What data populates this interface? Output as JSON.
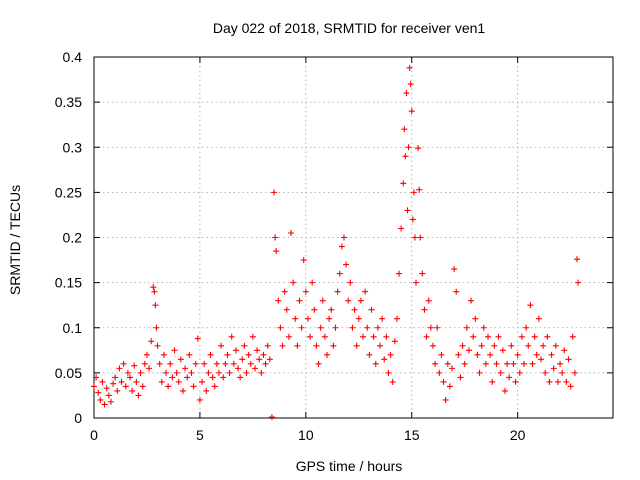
{
  "chart_data": {
    "type": "scatter",
    "title": "Day 022 of 2018, SRMTID for receiver ven1",
    "xlabel": "GPS time / hours",
    "ylabel": "SRMTID / TECUs",
    "xlim": [
      0,
      24.5
    ],
    "ylim": [
      0,
      0.4
    ],
    "xticks": [
      0,
      5,
      10,
      15,
      20
    ],
    "xtick_labels": [
      "0",
      "5",
      "10",
      "15",
      "20"
    ],
    "yticks": [
      0,
      0.05,
      0.1,
      0.15,
      0.2,
      0.25,
      0.3,
      0.35,
      0.4
    ],
    "ytick_labels": [
      "0",
      "0.05",
      "0.1",
      "0.15",
      "0.2",
      "0.25",
      "0.3",
      "0.35",
      "0.4"
    ],
    "grid": true,
    "marker": "plus",
    "color": "#ff0000",
    "series": [
      {
        "name": "SRMTID",
        "points": [
          [
            0.0,
            0.035
          ],
          [
            0.1,
            0.045
          ],
          [
            0.2,
            0.028
          ],
          [
            0.3,
            0.02
          ],
          [
            0.4,
            0.04
          ],
          [
            0.5,
            0.015
          ],
          [
            0.6,
            0.033
          ],
          [
            0.7,
            0.025
          ],
          [
            0.8,
            0.018
          ],
          [
            0.9,
            0.038
          ],
          [
            1.0,
            0.045
          ],
          [
            1.1,
            0.03
          ],
          [
            1.2,
            0.055
          ],
          [
            1.3,
            0.04
          ],
          [
            1.4,
            0.06
          ],
          [
            1.5,
            0.035
          ],
          [
            1.6,
            0.05
          ],
          [
            1.7,
            0.045
          ],
          [
            1.8,
            0.03
          ],
          [
            1.9,
            0.058
          ],
          [
            2.0,
            0.04
          ],
          [
            2.1,
            0.025
          ],
          [
            2.2,
            0.05
          ],
          [
            2.3,
            0.035
          ],
          [
            2.4,
            0.06
          ],
          [
            2.5,
            0.07
          ],
          [
            2.6,
            0.055
          ],
          [
            2.7,
            0.085
          ],
          [
            2.8,
            0.145
          ],
          [
            2.85,
            0.14
          ],
          [
            2.9,
            0.125
          ],
          [
            2.95,
            0.1
          ],
          [
            3.0,
            0.08
          ],
          [
            3.1,
            0.06
          ],
          [
            3.2,
            0.04
          ],
          [
            3.3,
            0.07
          ],
          [
            3.4,
            0.05
          ],
          [
            3.5,
            0.035
          ],
          [
            3.6,
            0.06
          ],
          [
            3.7,
            0.045
          ],
          [
            3.8,
            0.075
          ],
          [
            3.9,
            0.05
          ],
          [
            4.0,
            0.04
          ],
          [
            4.1,
            0.065
          ],
          [
            4.2,
            0.03
          ],
          [
            4.3,
            0.055
          ],
          [
            4.4,
            0.045
          ],
          [
            4.5,
            0.07
          ],
          [
            4.6,
            0.05
          ],
          [
            4.7,
            0.035
          ],
          [
            4.8,
            0.06
          ],
          [
            4.9,
            0.088
          ],
          [
            5.0,
            0.02
          ],
          [
            5.1,
            0.04
          ],
          [
            5.2,
            0.06
          ],
          [
            5.3,
            0.03
          ],
          [
            5.4,
            0.05
          ],
          [
            5.5,
            0.07
          ],
          [
            5.6,
            0.045
          ],
          [
            5.7,
            0.035
          ],
          [
            5.8,
            0.06
          ],
          [
            5.9,
            0.05
          ],
          [
            6.0,
            0.08
          ],
          [
            6.1,
            0.045
          ],
          [
            6.2,
            0.06
          ],
          [
            6.3,
            0.07
          ],
          [
            6.4,
            0.05
          ],
          [
            6.5,
            0.09
          ],
          [
            6.6,
            0.06
          ],
          [
            6.7,
            0.075
          ],
          [
            6.8,
            0.055
          ],
          [
            6.9,
            0.045
          ],
          [
            7.0,
            0.065
          ],
          [
            7.1,
            0.08
          ],
          [
            7.2,
            0.05
          ],
          [
            7.3,
            0.07
          ],
          [
            7.4,
            0.06
          ],
          [
            7.5,
            0.09
          ],
          [
            7.6,
            0.055
          ],
          [
            7.7,
            0.075
          ],
          [
            7.8,
            0.065
          ],
          [
            7.9,
            0.05
          ],
          [
            8.0,
            0.07
          ],
          [
            8.1,
            0.06
          ],
          [
            8.2,
            0.08
          ],
          [
            8.3,
            0.065
          ],
          [
            8.4,
            0.001
          ],
          [
            8.5,
            0.25
          ],
          [
            8.55,
            0.2
          ],
          [
            8.6,
            0.185
          ],
          [
            8.7,
            0.13
          ],
          [
            8.8,
            0.1
          ],
          [
            8.9,
            0.08
          ],
          [
            9.0,
            0.14
          ],
          [
            9.1,
            0.12
          ],
          [
            9.2,
            0.09
          ],
          [
            9.3,
            0.205
          ],
          [
            9.4,
            0.15
          ],
          [
            9.5,
            0.11
          ],
          [
            9.6,
            0.08
          ],
          [
            9.7,
            0.13
          ],
          [
            9.8,
            0.1
          ],
          [
            9.9,
            0.175
          ],
          [
            10.0,
            0.14
          ],
          [
            10.1,
            0.11
          ],
          [
            10.2,
            0.09
          ],
          [
            10.3,
            0.15
          ],
          [
            10.4,
            0.12
          ],
          [
            10.5,
            0.08
          ],
          [
            10.6,
            0.06
          ],
          [
            10.7,
            0.1
          ],
          [
            10.8,
            0.13
          ],
          [
            10.9,
            0.09
          ],
          [
            11.0,
            0.07
          ],
          [
            11.1,
            0.11
          ],
          [
            11.2,
            0.12
          ],
          [
            11.3,
            0.08
          ],
          [
            11.4,
            0.1
          ],
          [
            11.5,
            0.14
          ],
          [
            11.6,
            0.16
          ],
          [
            11.7,
            0.19
          ],
          [
            11.8,
            0.2
          ],
          [
            11.9,
            0.17
          ],
          [
            12.0,
            0.13
          ],
          [
            12.1,
            0.15
          ],
          [
            12.2,
            0.1
          ],
          [
            12.3,
            0.12
          ],
          [
            12.4,
            0.08
          ],
          [
            12.5,
            0.11
          ],
          [
            12.6,
            0.13
          ],
          [
            12.7,
            0.09
          ],
          [
            12.8,
            0.14
          ],
          [
            12.9,
            0.1
          ],
          [
            13.0,
            0.07
          ],
          [
            13.1,
            0.12
          ],
          [
            13.2,
            0.09
          ],
          [
            13.3,
            0.06
          ],
          [
            13.4,
            0.1
          ],
          [
            13.5,
            0.08
          ],
          [
            13.6,
            0.11
          ],
          [
            13.7,
            0.065
          ],
          [
            13.8,
            0.09
          ],
          [
            13.9,
            0.05
          ],
          [
            14.0,
            0.07
          ],
          [
            14.1,
            0.04
          ],
          [
            14.2,
            0.085
          ],
          [
            14.3,
            0.11
          ],
          [
            14.4,
            0.16
          ],
          [
            14.5,
            0.21
          ],
          [
            14.6,
            0.26
          ],
          [
            14.65,
            0.32
          ],
          [
            14.7,
            0.29
          ],
          [
            14.75,
            0.36
          ],
          [
            14.8,
            0.23
          ],
          [
            14.85,
            0.3
          ],
          [
            14.9,
            0.388
          ],
          [
            14.95,
            0.37
          ],
          [
            15.0,
            0.34
          ],
          [
            15.05,
            0.22
          ],
          [
            15.1,
            0.25
          ],
          [
            15.15,
            0.2
          ],
          [
            15.2,
            0.15
          ],
          [
            15.3,
            0.299
          ],
          [
            15.35,
            0.253
          ],
          [
            15.4,
            0.2
          ],
          [
            15.5,
            0.16
          ],
          [
            15.6,
            0.12
          ],
          [
            15.7,
            0.09
          ],
          [
            15.8,
            0.13
          ],
          [
            15.9,
            0.1
          ],
          [
            16.0,
            0.08
          ],
          [
            16.1,
            0.06
          ],
          [
            16.2,
            0.1
          ],
          [
            16.3,
            0.05
          ],
          [
            16.4,
            0.07
          ],
          [
            16.5,
            0.04
          ],
          [
            16.6,
            0.02
          ],
          [
            16.7,
            0.06
          ],
          [
            16.8,
            0.035
          ],
          [
            16.9,
            0.055
          ],
          [
            17.0,
            0.165
          ],
          [
            17.1,
            0.14
          ],
          [
            17.2,
            0.07
          ],
          [
            17.3,
            0.045
          ],
          [
            17.4,
            0.08
          ],
          [
            17.5,
            0.06
          ],
          [
            17.6,
            0.1
          ],
          [
            17.7,
            0.075
          ],
          [
            17.8,
            0.13
          ],
          [
            17.9,
            0.09
          ],
          [
            18.0,
            0.11
          ],
          [
            18.1,
            0.07
          ],
          [
            18.2,
            0.05
          ],
          [
            18.3,
            0.08
          ],
          [
            18.4,
            0.1
          ],
          [
            18.5,
            0.06
          ],
          [
            18.6,
            0.09
          ],
          [
            18.7,
            0.07
          ],
          [
            18.8,
            0.04
          ],
          [
            18.9,
            0.08
          ],
          [
            19.0,
            0.06
          ],
          [
            19.1,
            0.09
          ],
          [
            19.2,
            0.05
          ],
          [
            19.3,
            0.075
          ],
          [
            19.4,
            0.03
          ],
          [
            19.5,
            0.06
          ],
          [
            19.6,
            0.045
          ],
          [
            19.7,
            0.08
          ],
          [
            19.8,
            0.06
          ],
          [
            19.9,
            0.04
          ],
          [
            20.0,
            0.07
          ],
          [
            20.1,
            0.05
          ],
          [
            20.2,
            0.09
          ],
          [
            20.3,
            0.06
          ],
          [
            20.4,
            0.1
          ],
          [
            20.5,
            0.08
          ],
          [
            20.6,
            0.125
          ],
          [
            20.7,
            0.06
          ],
          [
            20.8,
            0.09
          ],
          [
            20.9,
            0.07
          ],
          [
            21.0,
            0.11
          ],
          [
            21.1,
            0.065
          ],
          [
            21.2,
            0.08
          ],
          [
            21.3,
            0.05
          ],
          [
            21.4,
            0.09
          ],
          [
            21.5,
            0.04
          ],
          [
            21.6,
            0.07
          ],
          [
            21.7,
            0.055
          ],
          [
            21.8,
            0.08
          ],
          [
            21.9,
            0.04
          ],
          [
            22.0,
            0.06
          ],
          [
            22.1,
            0.05
          ],
          [
            22.2,
            0.075
          ],
          [
            22.3,
            0.04
          ],
          [
            22.4,
            0.065
          ],
          [
            22.5,
            0.035
          ],
          [
            22.6,
            0.09
          ],
          [
            22.7,
            0.05
          ],
          [
            22.8,
            0.176
          ],
          [
            22.85,
            0.15
          ]
        ]
      }
    ]
  }
}
